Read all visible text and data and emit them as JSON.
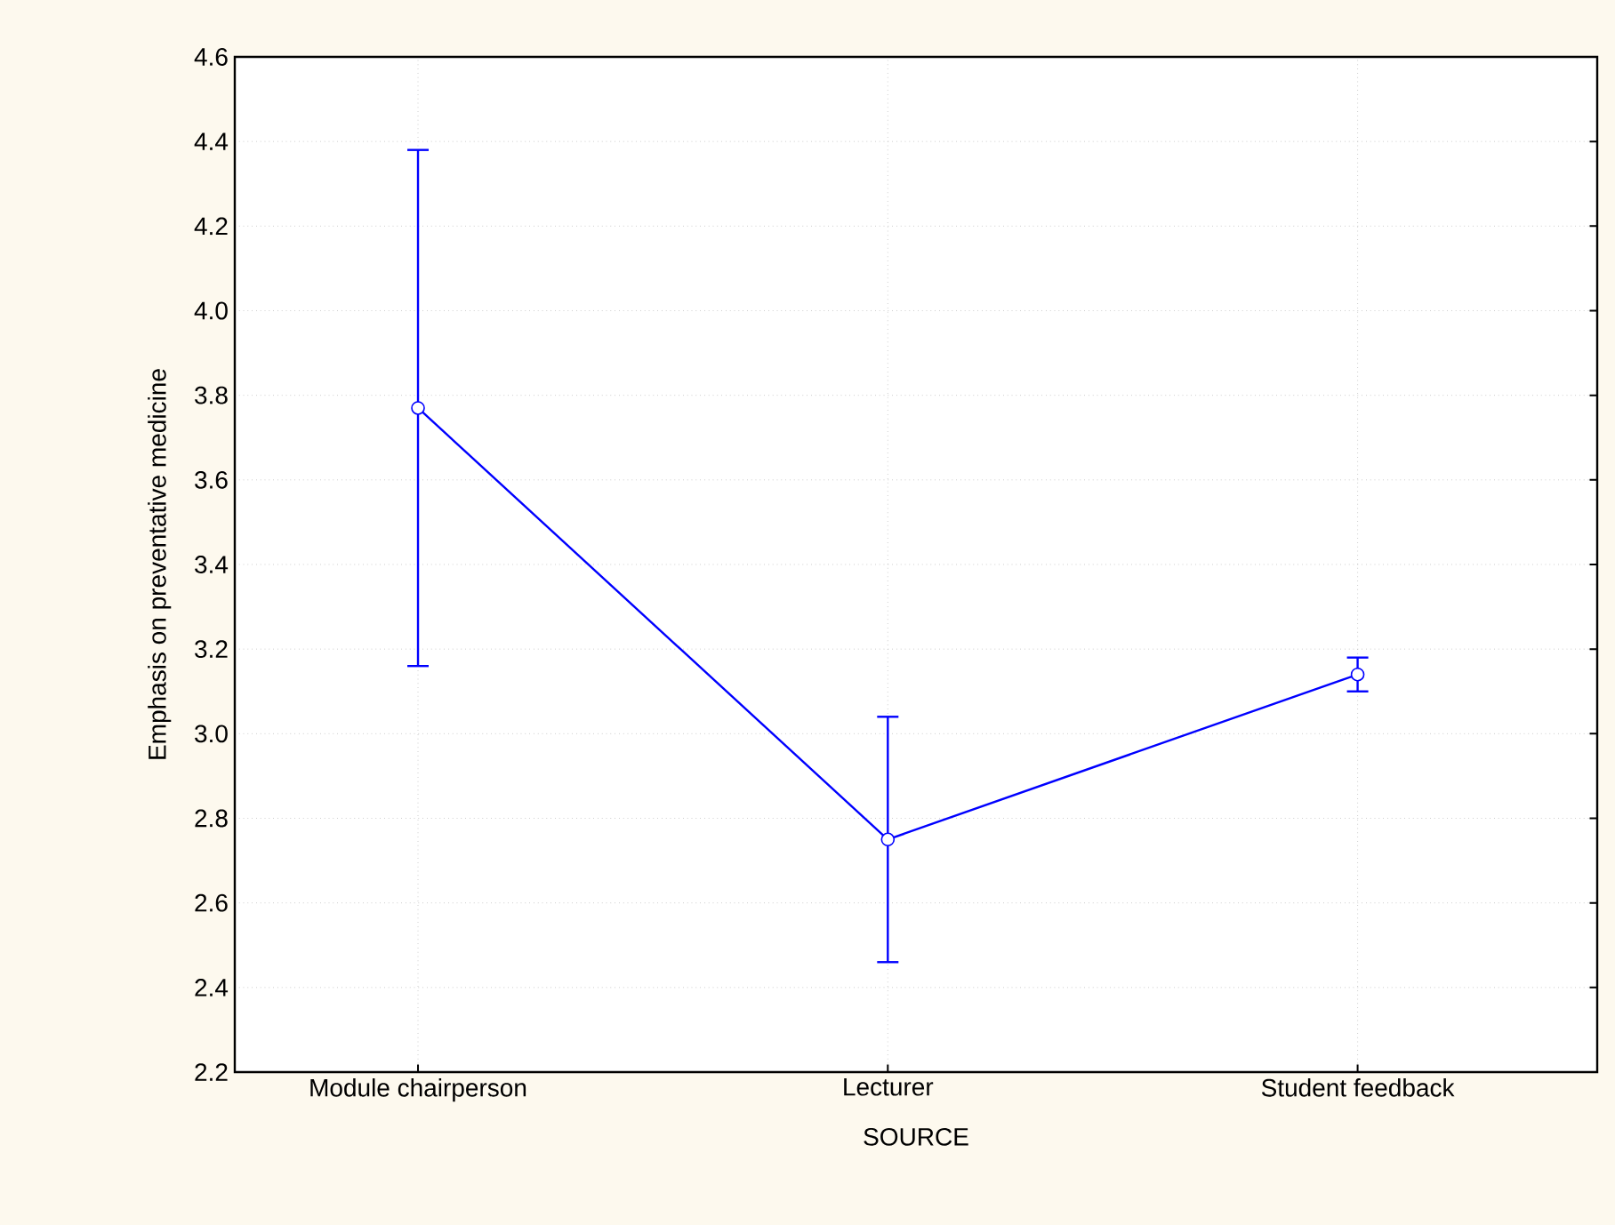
{
  "chart_data": {
    "type": "line",
    "xlabel": "SOURCE",
    "ylabel": "Emphasis on preventative medicine",
    "categories": [
      "Module chairperson",
      "Lecturer",
      "Student feedback"
    ],
    "series": [
      {
        "color": "#0000ff",
        "values": [
          3.77,
          2.75,
          3.14
        ],
        "errors": [
          0.61,
          0.29,
          0.04
        ]
      }
    ],
    "ylim": [
      2.2,
      4.6
    ],
    "yticks": [
      {
        "value": 2.2,
        "label": "2.2"
      },
      {
        "value": 2.4,
        "label": "2.4"
      },
      {
        "value": 2.6,
        "label": "2.6"
      },
      {
        "value": 2.8,
        "label": "2.8"
      },
      {
        "value": 3.0,
        "label": "3.0"
      },
      {
        "value": 3.2,
        "label": "3.2"
      },
      {
        "value": 3.4,
        "label": "3.4"
      },
      {
        "value": 3.6,
        "label": "3.6"
      },
      {
        "value": 3.8,
        "label": "3.8"
      },
      {
        "value": 4.0,
        "label": "4.0"
      },
      {
        "value": 4.2,
        "label": "4.2"
      },
      {
        "value": 4.4,
        "label": "4.4"
      },
      {
        "value": 4.6,
        "label": "4.6"
      }
    ],
    "grid": true,
    "marker": "circle",
    "line_style": "solid"
  }
}
